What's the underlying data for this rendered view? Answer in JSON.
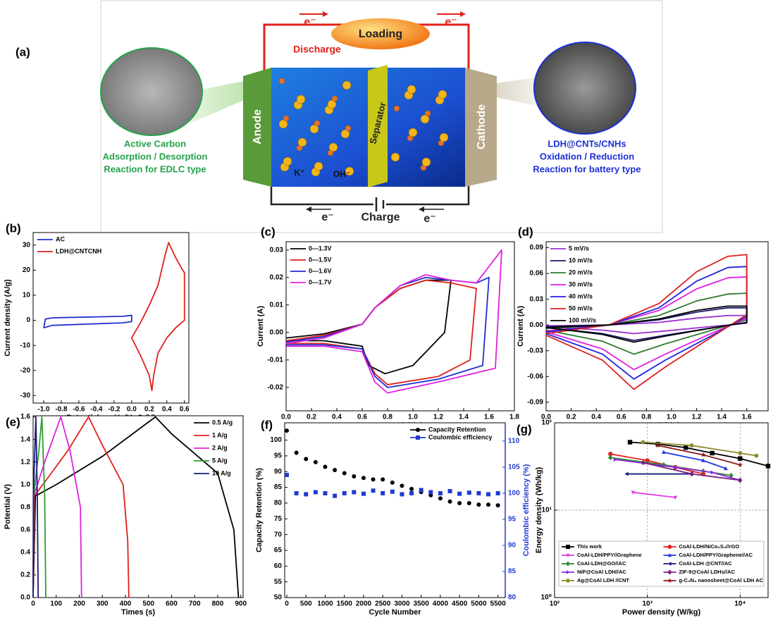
{
  "panel_a": {
    "label": "(a)",
    "electron_top_left": "e⁻",
    "electron_top_right": "e⁻",
    "load": "Loading",
    "discharge": "Discharge",
    "charge": "Charge",
    "electron_bottom_left": "e⁻",
    "electron_bottom_right": "e⁻",
    "anode": "Anode",
    "separator": "Separator",
    "cathode": "Cathode",
    "cation": "K⁺",
    "anion": "OH⁻",
    "left_title": "Active Carbon",
    "left_line1": "Adsorption / Desorption",
    "left_line2": "Reaction for EDLC type",
    "right_title": "LDH@CNTs/CNHs",
    "right_line1": "Oxidation / Reduction",
    "right_line2": "Reaction for battery type"
  },
  "chart_data": [
    {
      "type": "line",
      "label": "(b)",
      "xlabel": "Potential vs. Hg/HgO (V)",
      "ylabel": "Current density (A/g)",
      "xlim": [
        -1.12,
        0.65
      ],
      "ylim": [
        -33,
        35
      ],
      "xticks": [
        {
          "value": -1.0,
          "label": "-1.0"
        },
        -0.8,
        -0.6,
        -0.4,
        -0.2,
        {
          "value": 0.0,
          "label": "0.0"
        },
        0.2,
        0.4,
        0.6
      ],
      "yticks": [
        -30,
        -20,
        -10,
        0,
        10,
        20,
        30
      ],
      "legend": "upper left",
      "series": [
        {
          "name": "AC",
          "color": "#1f2ed0",
          "x": [
            -1.0,
            -0.98,
            -0.9,
            -0.5,
            -0.1,
            0.0,
            0.0,
            -0.1,
            -0.5,
            -0.9,
            -1.0
          ],
          "values": [
            -3,
            0.5,
            1,
            1.3,
            1.6,
            2,
            -0.5,
            -1,
            -1.5,
            -2,
            -3
          ]
        },
        {
          "name": "LDH@CNTCNH",
          "color": "#e0201b",
          "x": [
            0.0,
            0.1,
            0.2,
            0.3,
            0.38,
            0.42,
            0.5,
            0.58,
            0.6,
            0.6,
            0.5,
            0.4,
            0.3,
            0.25,
            0.23,
            0.2,
            0.1,
            0.0
          ],
          "values": [
            -7,
            -1,
            6,
            14,
            26,
            31,
            25,
            20,
            19,
            0,
            -3,
            -7,
            -13,
            -22,
            -28,
            -22,
            -14,
            -7
          ]
        }
      ]
    },
    {
      "type": "line",
      "label": "(c)",
      "xlabel": "Potential (V)",
      "ylabel": "Current (A)",
      "xlim": [
        0,
        1.8
      ],
      "ylim": [
        -0.0285,
        0.033
      ],
      "xticks": [
        {
          "value": 0.0,
          "label": "0.0"
        },
        0.2,
        0.4,
        0.6,
        0.8,
        {
          "value": 1.0,
          "label": "1.0"
        },
        1.2,
        1.4,
        1.6,
        1.8
      ],
      "yticks": [
        -0.02,
        -0.01,
        {
          "value": 0.0,
          "label": "0.00"
        },
        0.01,
        0.02,
        0.03
      ],
      "legend": "upper left",
      "series": [
        {
          "name": "0—1.3V",
          "color": "#000000",
          "x": [
            0,
            0.3,
            0.6,
            0.7,
            0.9,
            1.1,
            1.2,
            1.3,
            1.25,
            1.0,
            0.78,
            0.65,
            0.6,
            0.3,
            0
          ],
          "values": [
            -0.002,
            -0.0005,
            0.003,
            0.009,
            0.016,
            0.019,
            0.019,
            0.019,
            0.0,
            -0.012,
            -0.015,
            -0.012,
            -0.005,
            -0.003,
            -0.003
          ]
        },
        {
          "name": "0—1.5V",
          "color": "#e0201b",
          "x": [
            0,
            0.3,
            0.6,
            0.7,
            0.9,
            1.1,
            1.3,
            1.5,
            1.45,
            1.2,
            0.8,
            0.7,
            0.6,
            0.3,
            0
          ],
          "values": [
            -0.003,
            -0.001,
            0.003,
            0.009,
            0.016,
            0.019,
            0.018,
            0.016,
            -0.01,
            -0.016,
            -0.019,
            -0.015,
            -0.006,
            -0.004,
            -0.004
          ]
        },
        {
          "name": "0—1.6V",
          "color": "#1f2ed0",
          "x": [
            0,
            0.3,
            0.6,
            0.7,
            0.9,
            1.1,
            1.3,
            1.5,
            1.6,
            1.55,
            1.2,
            0.8,
            0.7,
            0.6,
            0.3,
            0
          ],
          "values": [
            -0.0035,
            -0.0015,
            0.003,
            0.009,
            0.017,
            0.02,
            0.019,
            0.018,
            0.02,
            -0.012,
            -0.017,
            -0.02,
            -0.016,
            -0.006,
            -0.0045,
            -0.0045
          ]
        },
        {
          "name": "0—1.7V",
          "color": "#e020e0",
          "x": [
            0,
            0.3,
            0.6,
            0.7,
            0.9,
            1.1,
            1.3,
            1.5,
            1.7,
            1.65,
            1.2,
            0.8,
            0.7,
            0.6,
            0.3,
            0
          ],
          "values": [
            -0.004,
            -0.002,
            0.003,
            0.009,
            0.017,
            0.021,
            0.019,
            0.018,
            0.03,
            -0.013,
            -0.018,
            -0.022,
            -0.018,
            -0.007,
            -0.005,
            -0.005
          ]
        }
      ]
    },
    {
      "type": "line",
      "label": "(d)",
      "xlabel": "Potential (V)",
      "ylabel": "Current (A)",
      "xlim": [
        0,
        1.77
      ],
      "ylim": [
        -0.1,
        0.097
      ],
      "xticks": [
        {
          "value": 0.0,
          "label": "0.0"
        },
        0.2,
        0.4,
        0.6,
        0.8,
        {
          "value": 1.0,
          "label": "1.0"
        },
        1.2,
        1.4,
        1.6
      ],
      "yticks": [
        -0.09,
        -0.06,
        -0.03,
        {
          "value": 0.0,
          "label": "0.00"
        },
        0.03,
        0.06,
        0.09
      ],
      "legend": "upper left",
      "x": [
        0,
        0.5,
        0.9,
        1.2,
        1.45,
        1.6,
        1.6,
        1.3,
        0.95,
        0.7,
        0.45,
        0
      ],
      "series": [
        {
          "name": "5 mV/s",
          "color": "#9b30d0",
          "values": [
            -0.001,
            0,
            0.003,
            0.008,
            0.011,
            0.011,
            0.002,
            -0.002,
            -0.007,
            -0.01,
            -0.006,
            -0.002
          ]
        },
        {
          "name": "10 mV/s",
          "color": "#1a1a6e",
          "values": [
            -0.002,
            0,
            0.006,
            0.015,
            0.02,
            0.02,
            0.003,
            -0.004,
            -0.012,
            -0.018,
            -0.01,
            -0.003
          ]
        },
        {
          "name": "20 mV/s",
          "color": "#2e7d32",
          "values": [
            -0.004,
            0,
            0.011,
            0.028,
            0.036,
            0.037,
            0.006,
            -0.007,
            -0.022,
            -0.034,
            -0.019,
            -0.006
          ]
        },
        {
          "name": "30 mV/s",
          "color": "#e020e0",
          "values": [
            -0.007,
            0,
            0.017,
            0.042,
            0.055,
            0.056,
            0.008,
            -0.011,
            -0.034,
            -0.052,
            -0.028,
            -0.008
          ]
        },
        {
          "name": "40 mV/s",
          "color": "#2020e0",
          "values": [
            -0.008,
            0,
            0.02,
            0.051,
            0.067,
            0.068,
            0.01,
            -0.014,
            -0.041,
            -0.063,
            -0.034,
            -0.01
          ]
        },
        {
          "name": "50 mV/s",
          "color": "#e02020",
          "values": [
            -0.01,
            0,
            0.025,
            0.062,
            0.08,
            0.082,
            0.012,
            -0.016,
            -0.049,
            -0.075,
            -0.041,
            -0.012
          ]
        },
        {
          "name": "100 mV/s",
          "color": "#000000",
          "values": [
            -0.003,
            0,
            0.007,
            0.017,
            0.022,
            0.022,
            0.003,
            -0.004,
            -0.013,
            -0.02,
            -0.011,
            -0.003
          ]
        }
      ]
    },
    {
      "type": "line",
      "label": "(e)",
      "xlabel": "Times (s)",
      "ylabel": "Potential (V)",
      "xlim": [
        0,
        910
      ],
      "ylim": [
        0,
        1.61
      ],
      "xticks": [
        0,
        100,
        200,
        300,
        400,
        500,
        600,
        700,
        800,
        900
      ],
      "yticks": [
        {
          "value": 0.0,
          "label": "0.0"
        },
        0.2,
        0.4,
        0.6,
        0.8,
        {
          "value": 1.0,
          "label": "1.0"
        },
        1.2,
        1.4,
        1.6
      ],
      "legend": "upper right",
      "series": [
        {
          "name": "0.5 A/g",
          "color": "#000000",
          "x": [
            0,
            10,
            100,
            300,
            530,
            600,
            800,
            870,
            890
          ],
          "values": [
            0,
            0.9,
            1.0,
            1.25,
            1.6,
            1.45,
            1.1,
            0.6,
            0
          ]
        },
        {
          "name": "1 A/g",
          "color": "#e0201b",
          "x": [
            0,
            5,
            60,
            150,
            240,
            300,
            390,
            410,
            415
          ],
          "values": [
            0,
            0.9,
            1.05,
            1.3,
            1.6,
            1.35,
            1.0,
            0.5,
            0
          ]
        },
        {
          "name": "2 A/g",
          "color": "#e020e0",
          "x": [
            0,
            3,
            50,
            120,
            160,
            205,
            210
          ],
          "values": [
            0,
            0.9,
            1.2,
            1.6,
            1.3,
            0.8,
            0
          ]
        },
        {
          "name": "5 A/g",
          "color": "#2e9e2e",
          "x": [
            0,
            2,
            25,
            38,
            50,
            55
          ],
          "values": [
            0,
            0.9,
            1.3,
            1.6,
            0.9,
            0
          ]
        },
        {
          "name": "10 A/g",
          "color": "#1a1a7e",
          "x": [
            0,
            1,
            12,
            18,
            22
          ],
          "values": [
            0,
            0.9,
            1.6,
            0.9,
            0
          ]
        }
      ]
    },
    {
      "type": "scatter",
      "label": "(f)",
      "xlabel": "Cycle Number",
      "ylabel": "Capacity Retention (%)",
      "y2label": "Coulombic efficiency (%)",
      "xlim": [
        -55,
        5690
      ],
      "ylim": [
        50,
        105.5
      ],
      "y2lim": [
        80,
        113.5
      ],
      "xticks": [
        0,
        500,
        1000,
        1500,
        2000,
        2500,
        3000,
        3500,
        4000,
        4500,
        5000,
        5500
      ],
      "yticks": [
        50,
        55,
        60,
        65,
        70,
        75,
        80,
        85,
        90,
        95,
        100
      ],
      "y2ticks": [
        80,
        85,
        90,
        95,
        100,
        105,
        110
      ],
      "legend": "upper right",
      "x": [
        0,
        250,
        500,
        750,
        1000,
        1250,
        1500,
        1750,
        2000,
        2250,
        2500,
        2750,
        3000,
        3250,
        3500,
        3750,
        4000,
        4250,
        4500,
        4750,
        5000,
        5250,
        5500
      ],
      "series": [
        {
          "name": "Capacity Retention",
          "color": "#000000",
          "marker": "circle",
          "values": [
            103,
            96,
            94,
            93,
            91.5,
            90.5,
            89.5,
            88.5,
            88,
            87.5,
            87.5,
            86.5,
            85.5,
            84.5,
            83.5,
            82.5,
            81.5,
            80.5,
            80,
            80,
            79.5,
            79.5,
            79.3
          ]
        },
        {
          "name": "Coulombic efficiency",
          "color": "#1f3ad0",
          "marker": "square",
          "axis": "y2",
          "values": [
            103.5,
            100,
            99.8,
            100.2,
            100,
            99.5,
            100,
            100.2,
            99.9,
            100.5,
            100,
            100.3,
            99.8,
            100,
            100.6,
            100.2,
            100,
            100.4,
            99.9,
            100.1,
            100,
            99.8,
            100
          ]
        }
      ]
    },
    {
      "type": "line",
      "label": "(g)",
      "xlabel": "Power density (W/kg)",
      "ylabel": "Energy density (Wh/kg)",
      "xscale": "log",
      "yscale": "log",
      "grid": true,
      "xlim": [
        100,
        20000
      ],
      "ylim": [
        1,
        100
      ],
      "xticks": [
        {
          "value": 100,
          "label": "10²"
        },
        {
          "value": 1000,
          "label": "10³"
        },
        {
          "value": 10000,
          "label": "10⁴"
        }
      ],
      "yticks": [
        {
          "value": 1,
          "label": "10⁰"
        },
        {
          "value": 10,
          "label": "10¹"
        },
        {
          "value": 100,
          "label": "10²"
        }
      ],
      "legend": "lower center",
      "legend_columns": 2,
      "series": [
        {
          "name": "This work",
          "color": "#000000",
          "marker": "square",
          "x": [
            650,
            1300,
            2600,
            5000,
            10000,
            20000
          ],
          "values": [
            60,
            57,
            52,
            45,
            39,
            32
          ]
        },
        {
          "name": "CoAl-LDH/NiCo₂S₄//rGO",
          "color": "#e32020",
          "marker": "circle",
          "x": [
            400,
            1000,
            2000,
            4000
          ],
          "values": [
            44,
            37,
            31,
            26
          ]
        },
        {
          "name": "CoAl-LDH/PPY//Graphene",
          "color": "#e040e0",
          "marker": "down",
          "x": [
            700,
            2000
          ],
          "values": [
            16,
            14
          ]
        },
        {
          "name": "CoAl-LDH/PPY/Graphene//AC",
          "color": "#1a3ae0",
          "marker": "triangle",
          "x": [
            1500,
            4000,
            7000
          ],
          "values": [
            46,
            37,
            30
          ]
        },
        {
          "name": "CoAl-LDH@GO//AC",
          "color": "#2e8b2e",
          "marker": "diamond",
          "x": [
            400,
            1500,
            4000,
            8000
          ],
          "values": [
            40,
            33,
            28,
            25
          ]
        },
        {
          "name": "CoAl-LDH @CNT//AC",
          "color": "#1a1a7e",
          "marker": "left",
          "x": [
            600,
            3000
          ],
          "values": [
            26,
            26
          ]
        },
        {
          "name": "NiP@CoAl LDH//AC",
          "color": "#8a2be2",
          "marker": "right",
          "x": [
            450,
            2000,
            5000,
            10000
          ],
          "values": [
            38,
            31,
            27,
            22
          ]
        },
        {
          "name": "ZIF-9@CoAl LDHs//AC",
          "color": "#7b1f7b",
          "marker": "diamond",
          "x": [
            900,
            3000,
            10000
          ],
          "values": [
            35,
            26,
            22
          ]
        },
        {
          "name": "Ag@CoAl LDH //CNT",
          "color": "#8b8b2b",
          "marker": "hexagon",
          "x": [
            900,
            3000,
            10000,
            15000
          ],
          "values": [
            60,
            55,
            45,
            42
          ]
        },
        {
          "name": "g-C₃N₄ nanosheet@CoAl LDH AC",
          "color": "#8b1a1a",
          "marker": "star",
          "x": [
            1300,
            4000,
            10000
          ],
          "values": [
            55,
            43,
            33
          ]
        }
      ]
    }
  ]
}
